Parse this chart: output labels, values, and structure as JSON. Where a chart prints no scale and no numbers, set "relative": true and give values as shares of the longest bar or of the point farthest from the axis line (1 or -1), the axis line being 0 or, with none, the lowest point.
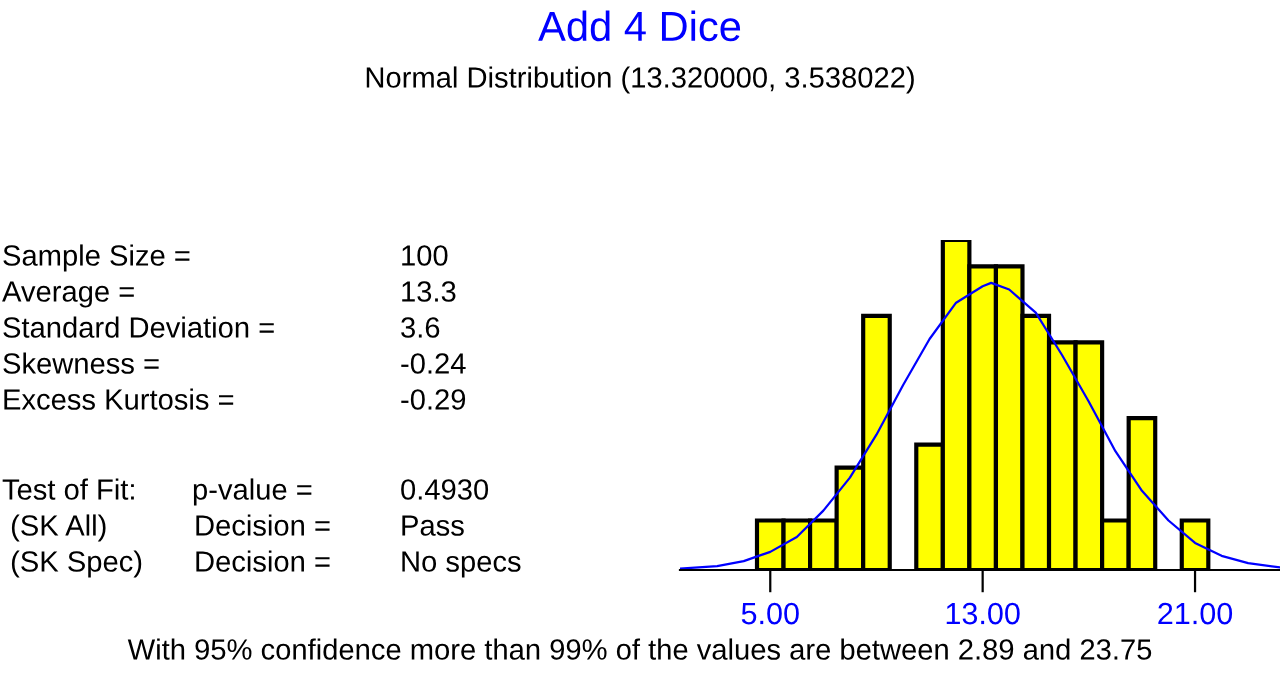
{
  "chart_data": {
    "type": "histogram",
    "title": "Add 4 Dice",
    "subtitle": "Normal Distribution (13.320000, 3.538022)",
    "relative": true,
    "bins": [
      4.5,
      5.5,
      6.5,
      7.5,
      8.5,
      9.5,
      10.5,
      11.5,
      12.5,
      13.5,
      14.5,
      15.5,
      16.5,
      17.5,
      18.5,
      19.5,
      20.5,
      21.5
    ],
    "values": [
      0.15,
      0.15,
      0.15,
      0.31,
      0.77,
      0,
      0.38,
      1,
      0.92,
      0.92,
      0.77,
      0.69,
      0.69,
      0.15,
      0.46,
      0,
      0.15
    ],
    "color": "#ffff00",
    "series": [
      {
        "type": "line",
        "color": "#0000ff",
        "x": [
          1.6,
          3,
          4,
          5,
          6,
          7,
          8,
          9,
          10,
          11,
          12,
          13,
          13.32,
          14,
          15,
          16,
          17,
          18,
          19,
          20,
          21,
          22,
          23,
          24.2
        ],
        "values": [
          0.004,
          0.012,
          0.027,
          0.055,
          0.1,
          0.18,
          0.28,
          0.41,
          0.56,
          0.7,
          0.81,
          0.86,
          0.87,
          0.85,
          0.78,
          0.65,
          0.51,
          0.36,
          0.24,
          0.15,
          0.082,
          0.043,
          0.021,
          0.008
        ]
      }
    ],
    "xlim": [
      1.6,
      24.2
    ],
    "xticks": [
      {
        "value": 5,
        "label": "5.00"
      },
      {
        "value": 13,
        "label": "13.00"
      },
      {
        "value": 21,
        "label": "21.00"
      }
    ],
    "annotations": [
      "Sample Size =",
      "100",
      "Average =",
      "13.3",
      "Standard Deviation =",
      "3.6",
      "Skewness =",
      "-0.24",
      "Excess Kurtosis =",
      "-0.29",
      "Test of Fit:",
      "p-value =",
      "0.4930",
      " (SK All)",
      "Decision =",
      "Pass",
      " (SK Spec)",
      "Decision =",
      "No specs",
      "With 95% confidence more than 99% of the values are between 2.89 and 23.75"
    ]
  }
}
